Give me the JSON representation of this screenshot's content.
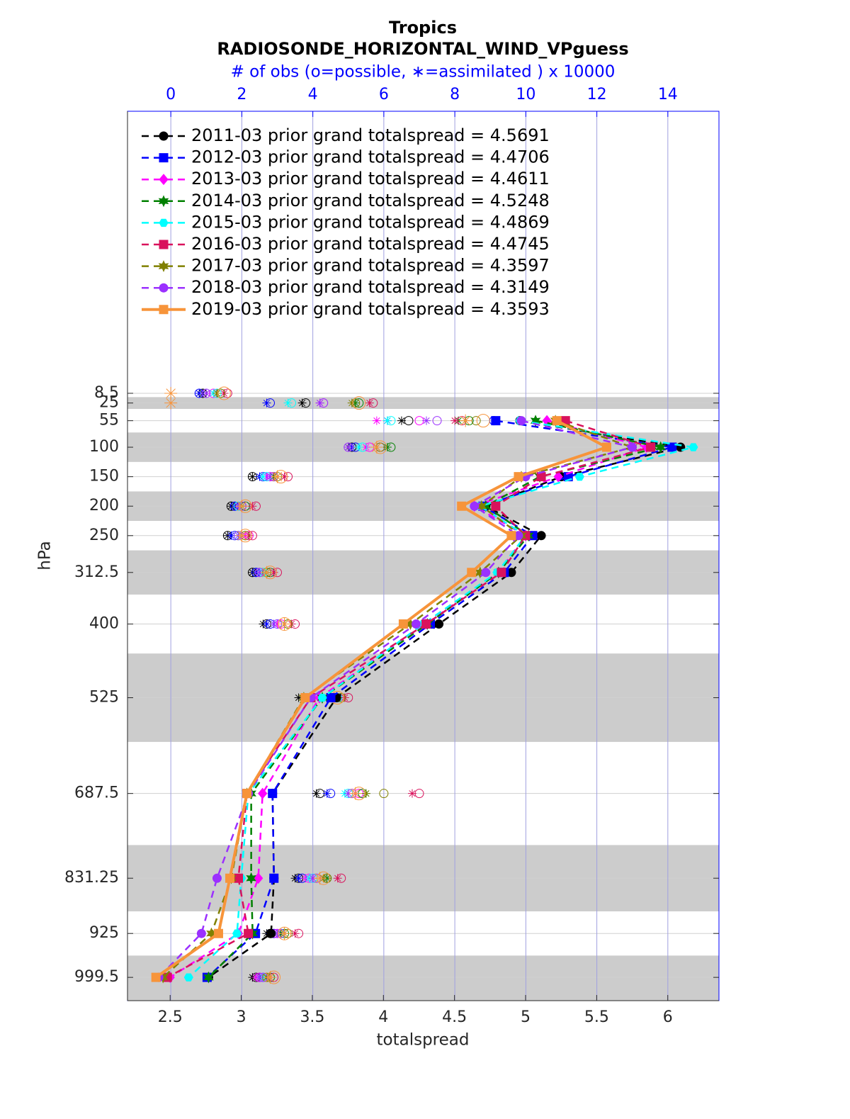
{
  "chart_data": {
    "type": "line",
    "title": "Tropics",
    "subtitle": "RADIOSONDE_HORIZONTAL_WIND_VPguess",
    "xlabel": "totalspread",
    "ylabel": "hPa",
    "x2label": "# of obs (o=possible, ∗=assimilated ) x 10000",
    "xlim": [
      2.2,
      6.36
    ],
    "xticks": [
      2.5,
      3,
      3.5,
      4,
      4.5,
      5,
      5.5,
      6
    ],
    "x2lim": [
      -1.22,
      15.44
    ],
    "x2ticks": [
      0,
      2,
      4,
      6,
      8,
      10,
      12,
      14
    ],
    "ylim": [
      -470,
      1039
    ],
    "y_direction": "reverse",
    "y": [
      8.5,
      25,
      55,
      100,
      150,
      200,
      250,
      312.5,
      400,
      525,
      687.5,
      831.25,
      925,
      999.5
    ],
    "yticks": [
      8.5,
      25,
      55,
      100,
      150,
      200,
      250,
      312.5,
      400,
      525,
      687.5,
      831.25,
      925,
      999.5
    ],
    "shaded_bands": [
      [
        15,
        35
      ],
      [
        75,
        125
      ],
      [
        175,
        225
      ],
      [
        275,
        350
      ],
      [
        450,
        600
      ],
      [
        775,
        887.5
      ],
      [
        962.5,
        1039
      ]
    ],
    "grid": true,
    "legend": "upper left",
    "series": [
      {
        "name": "2011-03 prior grand totalspread = 4.5691",
        "color": "#000000",
        "marker": "circle",
        "linestyle": "dashed",
        "values": [
          null,
          null,
          4.96,
          6.09,
          5.25,
          4.72,
          5.11,
          4.9,
          4.39,
          3.67,
          3.22,
          3.23,
          3.21,
          2.77
        ],
        "obs_possible": [
          0.9,
          3.8,
          6.7,
          5.1,
          2.3,
          1.7,
          1.6,
          2.3,
          2.7,
          4.6,
          4.2,
          3.6,
          2.8,
          2.4
        ],
        "obs_assimilated": [
          0.9,
          3.7,
          6.5,
          5.0,
          2.3,
          1.7,
          1.6,
          2.3,
          2.6,
          3.6,
          4.1,
          3.5,
          2.7,
          2.3
        ]
      },
      {
        "name": "2012-03 prior grand totalspread = 4.4706",
        "color": "#0000ff",
        "marker": "square",
        "linestyle": "dashed",
        "values": [
          null,
          null,
          4.79,
          6.03,
          5.3,
          4.7,
          5.05,
          4.85,
          4.33,
          3.63,
          3.22,
          3.23,
          3.1,
          2.76
        ],
        "obs_possible": [
          0.8,
          2.8,
          9.1,
          5.2,
          2.6,
          1.8,
          1.8,
          2.4,
          2.8,
          4.7,
          4.5,
          3.7,
          2.9,
          2.5
        ],
        "obs_assimilated": [
          0.8,
          2.7,
          6.1,
          5.1,
          2.5,
          1.8,
          1.7,
          2.4,
          2.7,
          4.4,
          4.4,
          3.6,
          2.8,
          2.5
        ]
      },
      {
        "name": "2013-03 prior grand totalspread = 4.4611",
        "color": "#ff00ff",
        "marker": "diamond",
        "linestyle": "dashed",
        "values": [
          null,
          null,
          5.15,
          5.85,
          5.23,
          4.64,
          5.0,
          4.81,
          4.3,
          3.55,
          3.15,
          3.12,
          2.98,
          2.5
        ],
        "obs_possible": [
          1.2,
          4.3,
          7.0,
          5.6,
          2.8,
          2.1,
          2.2,
          2.8,
          3.1,
          4.7,
          5.3,
          3.9,
          3.0,
          2.5
        ],
        "obs_assimilated": [
          1.2,
          4.2,
          5.8,
          5.5,
          2.7,
          2.0,
          2.1,
          2.7,
          3.0,
          4.6,
          5.2,
          3.8,
          2.9,
          2.4
        ]
      },
      {
        "name": "2014-03 prior grand totalspread = 4.5248",
        "color": "#008000",
        "marker": "hexagram",
        "linestyle": "dashed",
        "values": [
          null,
          null,
          5.07,
          5.95,
          5.1,
          4.72,
          5.02,
          4.81,
          4.31,
          3.57,
          3.07,
          3.07,
          3.08,
          2.77
        ],
        "obs_possible": [
          1.4,
          5.3,
          8.4,
          6.2,
          2.9,
          2.1,
          2.1,
          2.8,
          3.3,
          4.8,
          5.4,
          4.4,
          3.2,
          2.8
        ],
        "obs_assimilated": [
          1.3,
          5.2,
          8.1,
          6.1,
          2.9,
          2.0,
          2.0,
          2.7,
          3.2,
          4.7,
          5.5,
          4.4,
          3.1,
          2.7
        ]
      },
      {
        "name": "2015-03 prior grand totalspread = 4.4869",
        "color": "#00ffff",
        "marker": "hexagon",
        "linestyle": "dashed",
        "values": [
          null,
          null,
          4.96,
          6.18,
          5.38,
          4.68,
          5.0,
          4.8,
          4.28,
          3.57,
          3.05,
          3.0,
          2.97,
          2.63
        ],
        "obs_possible": [
          1.3,
          3.4,
          6.2,
          5.4,
          2.7,
          1.9,
          1.9,
          2.6,
          3.0,
          4.7,
          5.0,
          4.0,
          3.1,
          2.6
        ],
        "obs_assimilated": [
          1.2,
          3.3,
          6.1,
          5.3,
          2.6,
          1.9,
          1.9,
          2.6,
          2.9,
          4.6,
          4.9,
          3.9,
          3.0,
          2.6
        ]
      },
      {
        "name": "2016-03 prior grand totalspread = 4.4745",
        "color": "#d9125c",
        "marker": "square",
        "linestyle": "dashed",
        "values": [
          null,
          null,
          5.28,
          5.88,
          5.11,
          4.79,
          5.0,
          4.83,
          4.3,
          3.49,
          3.04,
          2.98,
          3.05,
          2.48
        ],
        "obs_possible": [
          1.6,
          5.7,
          8.2,
          5.9,
          3.3,
          2.4,
          2.3,
          3.0,
          3.5,
          5.0,
          7.0,
          4.8,
          3.6,
          2.9
        ],
        "obs_assimilated": [
          1.5,
          5.6,
          8.0,
          5.8,
          3.2,
          2.3,
          2.2,
          2.9,
          3.4,
          4.9,
          6.8,
          4.7,
          3.5,
          2.8
        ]
      },
      {
        "name": "2017-03 prior grand totalspread = 4.3597",
        "color": "#808000",
        "marker": "hexagram",
        "linestyle": "dashed",
        "values": [
          null,
          null,
          5.21,
          5.75,
          4.97,
          4.69,
          4.97,
          4.68,
          4.19,
          3.44,
          3.04,
          2.93,
          2.79,
          2.45
        ],
        "obs_possible": [
          1.4,
          5.2,
          8.6,
          5.9,
          3.0,
          2.0,
          2.1,
          2.7,
          3.3,
          4.8,
          6.0,
          4.4,
          3.3,
          2.7
        ],
        "obs_assimilated": [
          1.3,
          5.1,
          8.3,
          5.8,
          3.0,
          2.0,
          2.0,
          2.7,
          3.2,
          4.7,
          5.5,
          4.3,
          3.2,
          2.7
        ]
      },
      {
        "name": "2018-03 prior grand totalspread = 4.3149",
        "color": "#9b30ff",
        "marker": "circle",
        "linestyle": "dashed",
        "values": [
          null,
          null,
          4.97,
          5.75,
          5.0,
          4.64,
          4.95,
          4.72,
          4.23,
          3.49,
          3.05,
          2.83,
          2.72,
          2.42
        ],
        "obs_possible": [
          1.0,
          4.3,
          7.5,
          5.0,
          2.9,
          2.0,
          1.9,
          2.5,
          3.0,
          4.6,
          5.1,
          4.1,
          3.1,
          2.6
        ],
        "obs_assimilated": [
          1.0,
          4.2,
          7.2,
          5.0,
          2.8,
          1.9,
          1.9,
          2.5,
          2.9,
          4.5,
          5.0,
          4.0,
          3.0,
          2.5
        ]
      },
      {
        "name": "2019-03 prior grand totalspread = 4.3593",
        "color": "#f7943a",
        "marker": "square",
        "linestyle": "solid",
        "values": [
          null,
          null,
          5.22,
          5.57,
          4.95,
          4.55,
          4.9,
          4.62,
          4.14,
          3.45,
          3.04,
          2.92,
          2.84,
          2.4
        ],
        "obs_possible": [
          1.5,
          5.3,
          8.8,
          5.9,
          3.1,
          2.1,
          2.1,
          2.8,
          3.2,
          4.7,
          5.3,
          4.3,
          3.2,
          2.9
        ],
        "obs_assimilated": [
          0.0,
          0.0,
          8.3,
          5.8,
          3.0,
          2.0,
          2.0,
          2.7,
          3.2,
          4.6,
          5.2,
          4.2,
          3.2,
          2.8
        ]
      }
    ]
  }
}
